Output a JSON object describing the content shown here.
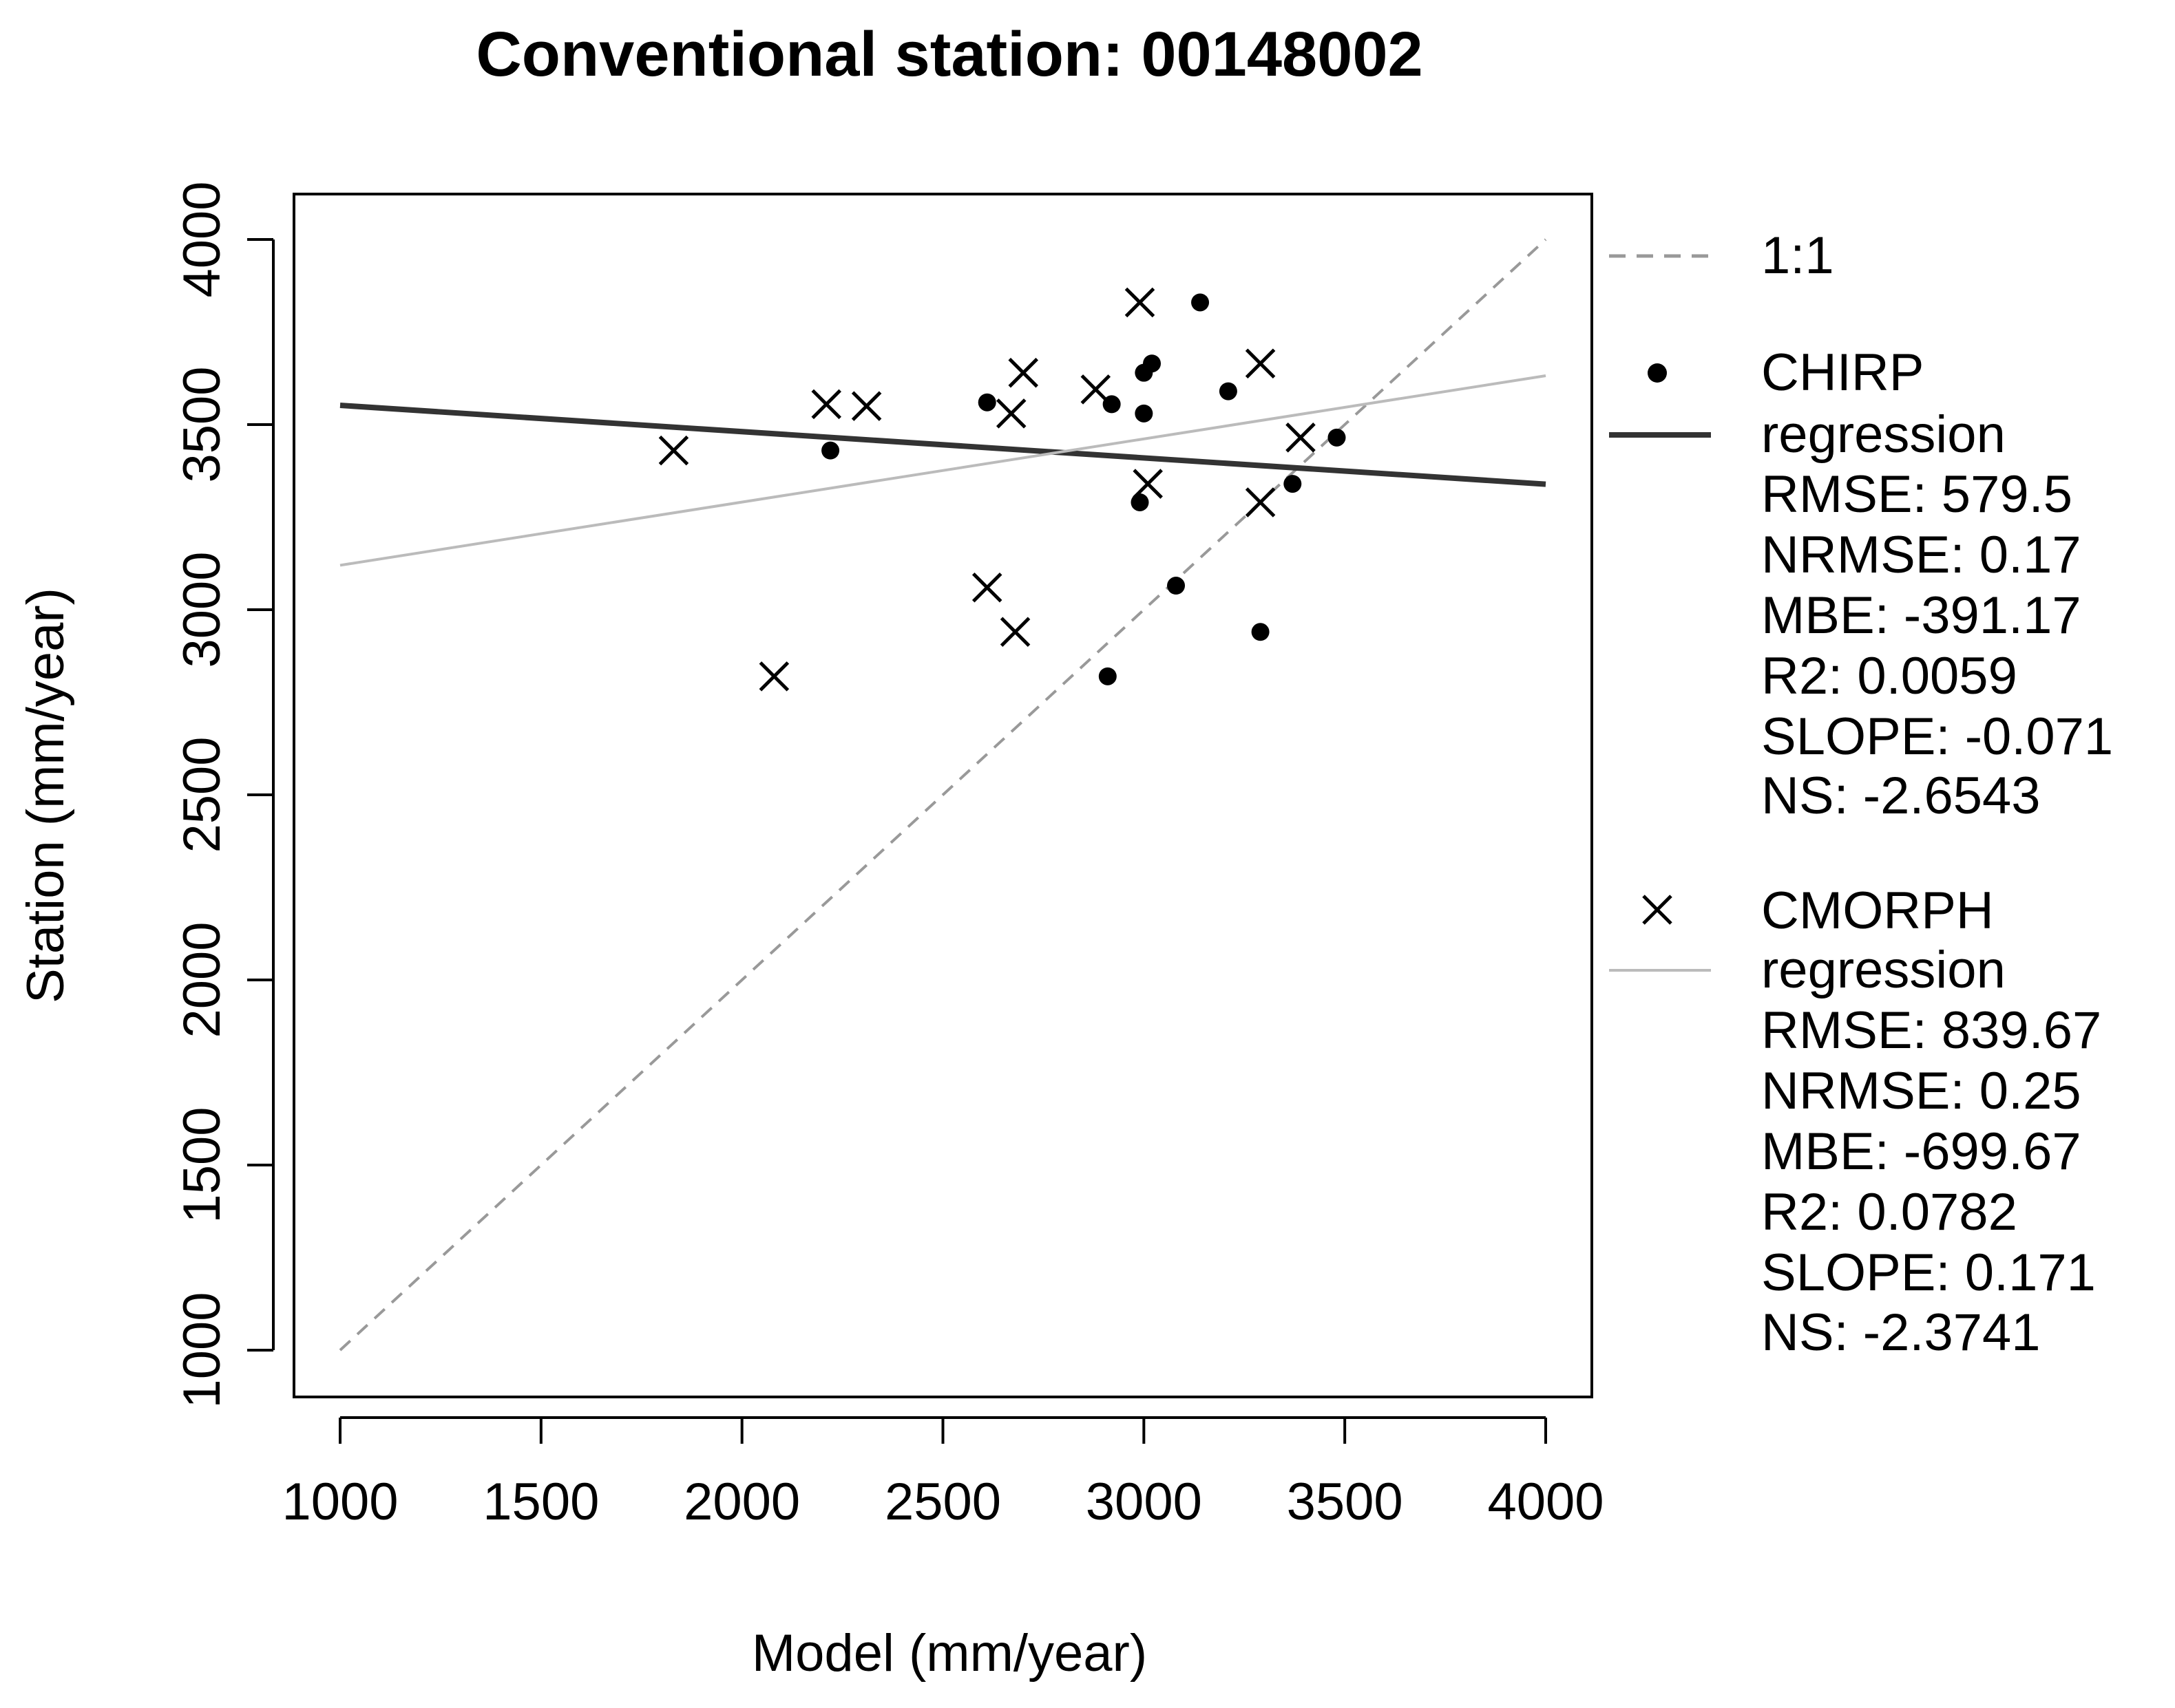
{
  "chart_data": {
    "type": "scatter",
    "title": "Conventional station: 00148002",
    "xlabel": "Model (mm/year)",
    "ylabel": "Station (mm/year)",
    "xlim": [
      1000,
      4000
    ],
    "ylim": [
      1000,
      4000
    ],
    "x_ticks": [
      "1000",
      "1500",
      "2000",
      "2500",
      "3000",
      "3500",
      "4000"
    ],
    "y_ticks": [
      "1000",
      "1500",
      "2000",
      "2500",
      "3000",
      "3500",
      "4000"
    ],
    "grid": false,
    "legend_position": "right",
    "reference_line": {
      "label": "1:1",
      "x": [
        1000,
        4000
      ],
      "y": [
        1000,
        4000
      ],
      "style": "dashed",
      "color": "#999999"
    },
    "series": [
      {
        "name": "CHIRP",
        "marker": "dot",
        "color": "#000000",
        "points": [
          [
            2220,
            3430
          ],
          [
            2610,
            3560
          ],
          [
            2920,
            3555
          ],
          [
            3000,
            3530
          ],
          [
            3000,
            3640
          ],
          [
            3020,
            3665
          ],
          [
            3140,
            3830
          ],
          [
            3210,
            3590
          ],
          [
            2990,
            3290
          ],
          [
            3080,
            3065
          ],
          [
            2910,
            2820
          ],
          [
            3290,
            2940
          ],
          [
            3370,
            3340
          ],
          [
            3480,
            3465
          ]
        ],
        "regression": {
          "label": "regression",
          "x": [
            1000,
            4000
          ],
          "y": [
            3552,
            3339
          ],
          "color": "#333333"
        },
        "stats": [
          "RMSE: 579.5",
          "NRMSE: 0.17",
          "MBE: -391.17",
          "R2: 0.0059",
          "SLOPE: -0.071",
          "NS: -2.6543"
        ]
      },
      {
        "name": "CMORPH",
        "marker": "x",
        "color": "#000000",
        "points": [
          [
            1830,
            3430
          ],
          [
            2080,
            2820
          ],
          [
            2210,
            3555
          ],
          [
            2310,
            3550
          ],
          [
            2610,
            3060
          ],
          [
            2670,
            3530
          ],
          [
            2680,
            2940
          ],
          [
            2700,
            3640
          ],
          [
            2880,
            3595
          ],
          [
            2990,
            3830
          ],
          [
            3010,
            3340
          ],
          [
            3290,
            3665
          ],
          [
            3290,
            3290
          ],
          [
            3390,
            3465
          ]
        ],
        "regression": {
          "label": "regression",
          "x": [
            1000,
            4000
          ],
          "y": [
            3120,
            3632
          ],
          "color": "#bbbbbb"
        },
        "stats": [
          "RMSE: 839.67",
          "NRMSE: 0.25",
          "MBE: -699.67",
          "R2: 0.0782",
          "SLOPE: 0.171",
          "NS: -2.3741"
        ]
      }
    ]
  }
}
